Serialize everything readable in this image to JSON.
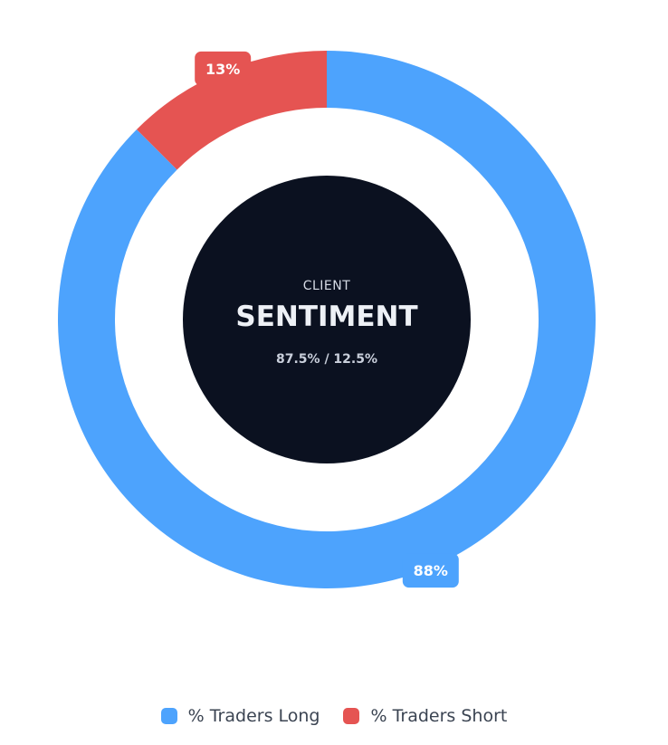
{
  "chart_data": {
    "type": "pie",
    "donut": true,
    "center": {
      "label_small": "CLIENT",
      "label_big": "SENTIMENT",
      "ratio_text": "87.5% / 12.5%"
    },
    "series": [
      {
        "name": "% Traders Long",
        "value": 87.5,
        "label": "88%",
        "color": "#4da3fd"
      },
      {
        "name": "% Traders Short",
        "value": 12.5,
        "label": "13%",
        "color": "#e55452"
      }
    ],
    "legend_position": "bottom-center",
    "center_color": "#0b1120"
  }
}
